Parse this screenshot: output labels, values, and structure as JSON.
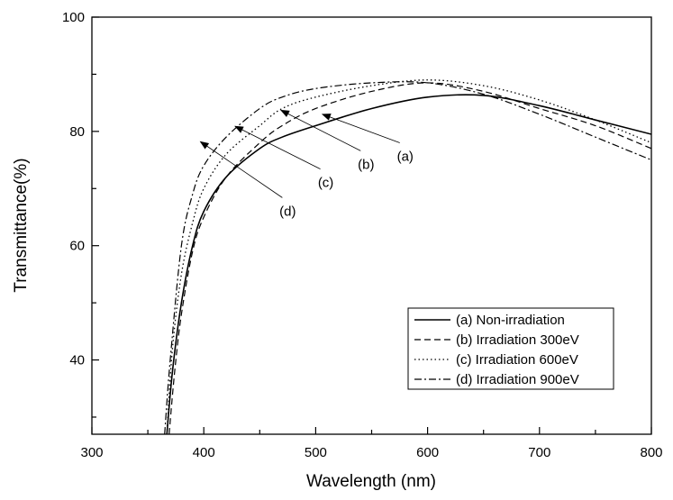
{
  "chart_data": {
    "type": "line",
    "title": "",
    "xlabel": "Wavelength (nm)",
    "ylabel": "Transmittance(%)",
    "xlim": [
      300,
      800
    ],
    "ylim": [
      27,
      100
    ],
    "xticks": [
      300,
      400,
      500,
      600,
      700,
      800
    ],
    "yticks": [
      40,
      60,
      80,
      100
    ],
    "grid": false,
    "legend_position": "bottom-right",
    "series": [
      {
        "name": "(a) Non-irradiation",
        "style": "solid",
        "x": [
          367,
          372,
          380,
          390,
          400,
          420,
          450,
          470,
          500,
          550,
          600,
          650,
          700,
          750,
          800
        ],
        "y": [
          27,
          38,
          50,
          60,
          66,
          72,
          77,
          79,
          81,
          84,
          86,
          86.3,
          84.5,
          82,
          79.5
        ]
      },
      {
        "name": "(b) Irradiation 300eV",
        "style": "dashed",
        "x": [
          369,
          374,
          380,
          390,
          400,
          420,
          450,
          470,
          500,
          550,
          600,
          650,
          700,
          750,
          800
        ],
        "y": [
          27,
          38,
          48,
          59,
          65,
          72,
          78,
          81,
          84,
          87,
          88.5,
          87,
          84,
          81,
          77
        ]
      },
      {
        "name": "(c) Irradiation 600eV",
        "style": "dotted",
        "x": [
          367,
          372,
          380,
          390,
          400,
          420,
          450,
          470,
          500,
          550,
          600,
          650,
          700,
          750,
          800
        ],
        "y": [
          27,
          42,
          55,
          64,
          70,
          76,
          81,
          84,
          86,
          88,
          89,
          88,
          85.5,
          82,
          78
        ]
      },
      {
        "name": "(d) Irradiation 900eV",
        "style": "dashdot",
        "x": [
          365,
          370,
          380,
          390,
          400,
          420,
          450,
          470,
          500,
          550,
          600,
          650,
          700,
          750,
          800
        ],
        "y": [
          27,
          40,
          60,
          69,
          74,
          79,
          84,
          86,
          87.5,
          88.5,
          88.5,
          86.5,
          83,
          79,
          75
        ]
      }
    ],
    "annotations": [
      {
        "text": "(a)",
        "label_x": 580,
        "label_y": 75.8,
        "arrow_x": 506,
        "arrow_y": 83
      },
      {
        "text": "(b)",
        "label_x": 545,
        "label_y": 74.4,
        "arrow_x": 469,
        "arrow_y": 83.7
      },
      {
        "text": "(c)",
        "label_x": 509,
        "label_y": 71.2,
        "arrow_x": 428,
        "arrow_y": 80.9
      },
      {
        "text": "(d)",
        "label_x": 475,
        "label_y": 66.2,
        "arrow_x": 397,
        "arrow_y": 78.2
      }
    ]
  }
}
